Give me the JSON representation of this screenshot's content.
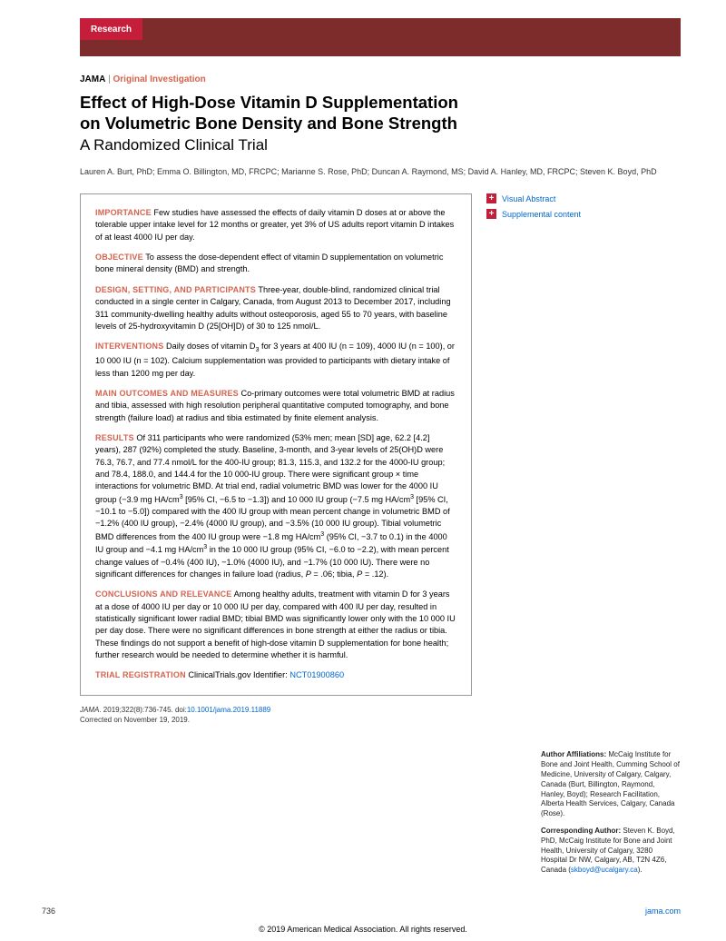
{
  "header": {
    "research_tag": "Research"
  },
  "meta": {
    "journal": "JAMA",
    "divider": "|",
    "category": "Original Investigation"
  },
  "title_line1": "Effect of High-Dose Vitamin D Supplementation",
  "title_line2": "on Volumetric Bone Density and Bone Strength",
  "subtitle": "A Randomized Clinical Trial",
  "authors": "Lauren A. Burt, PhD; Emma O. Billington, MD, FRCPC; Marianne S. Rose, PhD; Duncan A. Raymond, MS; David A. Hanley, MD, FRCPC; Steven K. Boyd, PhD",
  "abstract": {
    "importance": {
      "label": "IMPORTANCE",
      "text": "Few studies have assessed the effects of daily vitamin D doses at or above the tolerable upper intake level for 12 months or greater, yet 3% of US adults report vitamin D intakes of at least 4000 IU per day."
    },
    "objective": {
      "label": "OBJECTIVE",
      "text": "To assess the dose-dependent effect of vitamin D supplementation on volumetric bone mineral density (BMD) and strength."
    },
    "design": {
      "label": "DESIGN, SETTING, AND PARTICIPANTS",
      "text": "Three-year, double-blind, randomized clinical trial conducted in a single center in Calgary, Canada, from August 2013 to December 2017, including 311 community-dwelling healthy adults without osteoporosis, aged 55 to 70 years, with baseline levels of 25-hydroxyvitamin D (25[OH]D) of 30 to 125 nmol/L."
    },
    "interventions": {
      "label": "INTERVENTIONS",
      "text_pre": "Daily doses of vitamin D",
      "text_post": " for 3 years at 400 IU (n = 109), 4000 IU (n = 100), or 10 000 IU (n = 102). Calcium supplementation was provided to participants with dietary intake of less than 1200 mg per day."
    },
    "outcomes": {
      "label": "MAIN OUTCOMES AND MEASURES",
      "text": "Co-primary outcomes were total volumetric BMD at radius and tibia, assessed with high resolution peripheral quantitative computed tomography, and bone strength (failure load) at radius and tibia estimated by finite element analysis."
    },
    "results": {
      "label": "RESULTS",
      "text_a": "Of 311 participants who were randomized (53% men; mean [SD] age, 62.2 [4.2] years), 287 (92%) completed the study. Baseline, 3-month, and 3-year levels of 25(OH)D were 76.3, 76.7, and 77.4 nmol/L for the 400-IU group; 81.3, 115.3, and 132.2 for the 4000-IU group; and 78.4, 188.0, and 144.4 for the 10 000-IU group. There were significant group × time interactions for volumetric BMD. At trial end, radial volumetric BMD was lower for the 4000 IU group (−3.9 mg HA/cm",
      "text_b": " [95% CI, −6.5 to −1.3]) and 10 000 IU group (−7.5 mg HA/cm",
      "text_c": " [95% CI, −10.1 to −5.0]) compared with the 400 IU group with mean percent change in volumetric BMD of −1.2% (400 IU group), −2.4% (4000 IU group), and −3.5% (10 000 IU group). Tibial volumetric BMD differences from the 400 IU group were −1.8 mg HA/cm",
      "text_d": " (95% CI, −3.7 to 0.1) in the 4000 IU group and −4.1 mg HA/cm",
      "text_e": " in the 10 000 IU group (95% CI, −6.0 to −2.2), with mean percent change values of −0.4% (400 IU), −1.0% (4000 IU), and −1.7% (10 000 IU). There were no significant differences for changes in failure load (radius, ",
      "p1": "P",
      "text_f": " = .06; tibia, ",
      "p2": "P",
      "text_g": " = .12)."
    },
    "conclusions": {
      "label": "CONCLUSIONS AND RELEVANCE",
      "text": "Among healthy adults, treatment with vitamin D for 3 years at a dose of 4000 IU per day or 10 000 IU per day, compared with 400 IU per day, resulted in statistically significant lower radial BMD; tibial BMD was significantly lower only with the 10 000 IU per day dose. There were no significant differences in bone strength at either the radius or tibia. These findings do not support a benefit of high-dose vitamin D supplementation for bone health; further research would be needed to determine whether it is harmful."
    },
    "registration": {
      "label": "TRIAL REGISTRATION",
      "text": "ClinicalTrials.gov Identifier: ",
      "link": "NCT01900860"
    }
  },
  "supplements": {
    "visual": "Visual Abstract",
    "content": "Supplemental content"
  },
  "citation": {
    "ref_pre": "JAMA",
    "ref_mid": ". 2019;322(8):736-745. doi:",
    "doi": "10.1001/jama.2019.11889",
    "corrected": "Corrected on November 19, 2019."
  },
  "affiliations": {
    "label1": "Author Affiliations:",
    "text1": " McCaig Institute for Bone and Joint Health, Cumming School of Medicine, University of Calgary, Calgary, Canada (Burt, Billington, Raymond, Hanley, Boyd); Research Facilitation, Alberta Health Services, Calgary, Canada (Rose).",
    "label2": "Corresponding Author:",
    "text2": " Steven K. Boyd, PhD, McCaig Institute for Bone and Joint Health, University of Calgary, 3280 Hospital Dr NW, Calgary, AB, T2N 4Z6, Canada (",
    "email": "skboyd@ucalgary.ca",
    "text3": ")."
  },
  "footer": {
    "page": "736",
    "site": "jama.com",
    "copyright": "© 2019 American Medical Association. All rights reserved."
  },
  "colors": {
    "maroon": "#7d2b2b",
    "red": "#c41e3a",
    "orange": "#d4634f",
    "link": "#0066cc"
  }
}
